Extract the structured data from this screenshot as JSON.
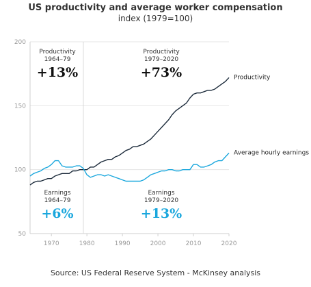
{
  "header": {
    "title": "US productivity and average worker compensation",
    "subtitle": "index (1979=100)"
  },
  "footer": {
    "source": "Source: US Federal Reserve System - McKinsey analysis"
  },
  "colors": {
    "productivity": "#1b2a3a",
    "earnings": "#1aa7dd",
    "grid": "#e4e4e4",
    "axis_text": "#9a9a9a"
  },
  "annotations": [
    {
      "label": "Productivity",
      "period": "1964–79",
      "value": "+13%",
      "series": "productivity"
    },
    {
      "label": "Productivity",
      "period": "1979–2020",
      "value": "+73%",
      "series": "productivity"
    },
    {
      "label": "Earnings",
      "period": "1964–79",
      "value": "+6%",
      "series": "earnings"
    },
    {
      "label": "Earnings",
      "period": "1979–2020",
      "value": "+13%",
      "series": "earnings"
    }
  ],
  "chart_data": {
    "type": "line",
    "title": "US productivity and average worker compensation",
    "subtitle": "index (1979=100)",
    "xlim": [
      1964,
      2020
    ],
    "ylim": [
      50,
      200
    ],
    "xticks": [
      1970,
      1980,
      1990,
      2000,
      2010,
      2020
    ],
    "yticks": [
      50,
      100,
      150,
      200
    ],
    "reference_x": 1979,
    "grid": true,
    "legend": "line-end labels",
    "series": [
      {
        "name": "Productivity",
        "color": "#1b2a3a",
        "x": [
          1964,
          1965,
          1966,
          1967,
          1968,
          1969,
          1970,
          1971,
          1972,
          1973,
          1974,
          1975,
          1976,
          1977,
          1978,
          1979,
          1980,
          1981,
          1982,
          1983,
          1984,
          1985,
          1986,
          1987,
          1988,
          1989,
          1990,
          1991,
          1992,
          1993,
          1994,
          1995,
          1996,
          1997,
          1998,
          1999,
          2000,
          2001,
          2002,
          2003,
          2004,
          2005,
          2006,
          2007,
          2008,
          2009,
          2010,
          2011,
          2012,
          2013,
          2014,
          2015,
          2016,
          2017,
          2018,
          2019,
          2020
        ],
        "values": [
          88,
          90,
          91,
          91,
          92,
          93,
          93,
          95,
          96,
          97,
          97,
          97,
          99,
          99,
          100,
          100,
          100,
          102,
          102,
          104,
          106,
          107,
          108,
          108,
          110,
          111,
          113,
          115,
          116,
          118,
          118,
          119,
          120,
          122,
          124,
          127,
          130,
          133,
          136,
          139,
          143,
          146,
          148,
          150,
          152,
          156,
          159,
          160,
          160,
          161,
          162,
          162,
          163,
          165,
          167,
          169,
          172
        ]
      },
      {
        "name": "Average hourly earnings",
        "color": "#1aa7dd",
        "x": [
          1964,
          1965,
          1966,
          1967,
          1968,
          1969,
          1970,
          1971,
          1972,
          1973,
          1974,
          1975,
          1976,
          1977,
          1978,
          1979,
          1980,
          1981,
          1982,
          1983,
          1984,
          1985,
          1986,
          1987,
          1988,
          1989,
          1990,
          1991,
          1992,
          1993,
          1994,
          1995,
          1996,
          1997,
          1998,
          1999,
          2000,
          2001,
          2002,
          2003,
          2004,
          2005,
          2006,
          2007,
          2008,
          2009,
          2010,
          2011,
          2012,
          2013,
          2014,
          2015,
          2016,
          2017,
          2018,
          2019,
          2020
        ],
        "values": [
          95,
          97,
          98,
          99,
          101,
          102,
          104,
          107,
          107,
          103,
          102,
          102,
          102,
          103,
          103,
          101,
          96,
          94,
          95,
          96,
          96,
          95,
          96,
          95,
          94,
          93,
          92,
          91,
          91,
          91,
          91,
          91,
          92,
          94,
          96,
          97,
          98,
          99,
          99,
          100,
          100,
          99,
          99,
          100,
          100,
          100,
          104,
          104,
          102,
          102,
          103,
          104,
          106,
          107,
          107,
          110,
          113
        ]
      }
    ]
  }
}
